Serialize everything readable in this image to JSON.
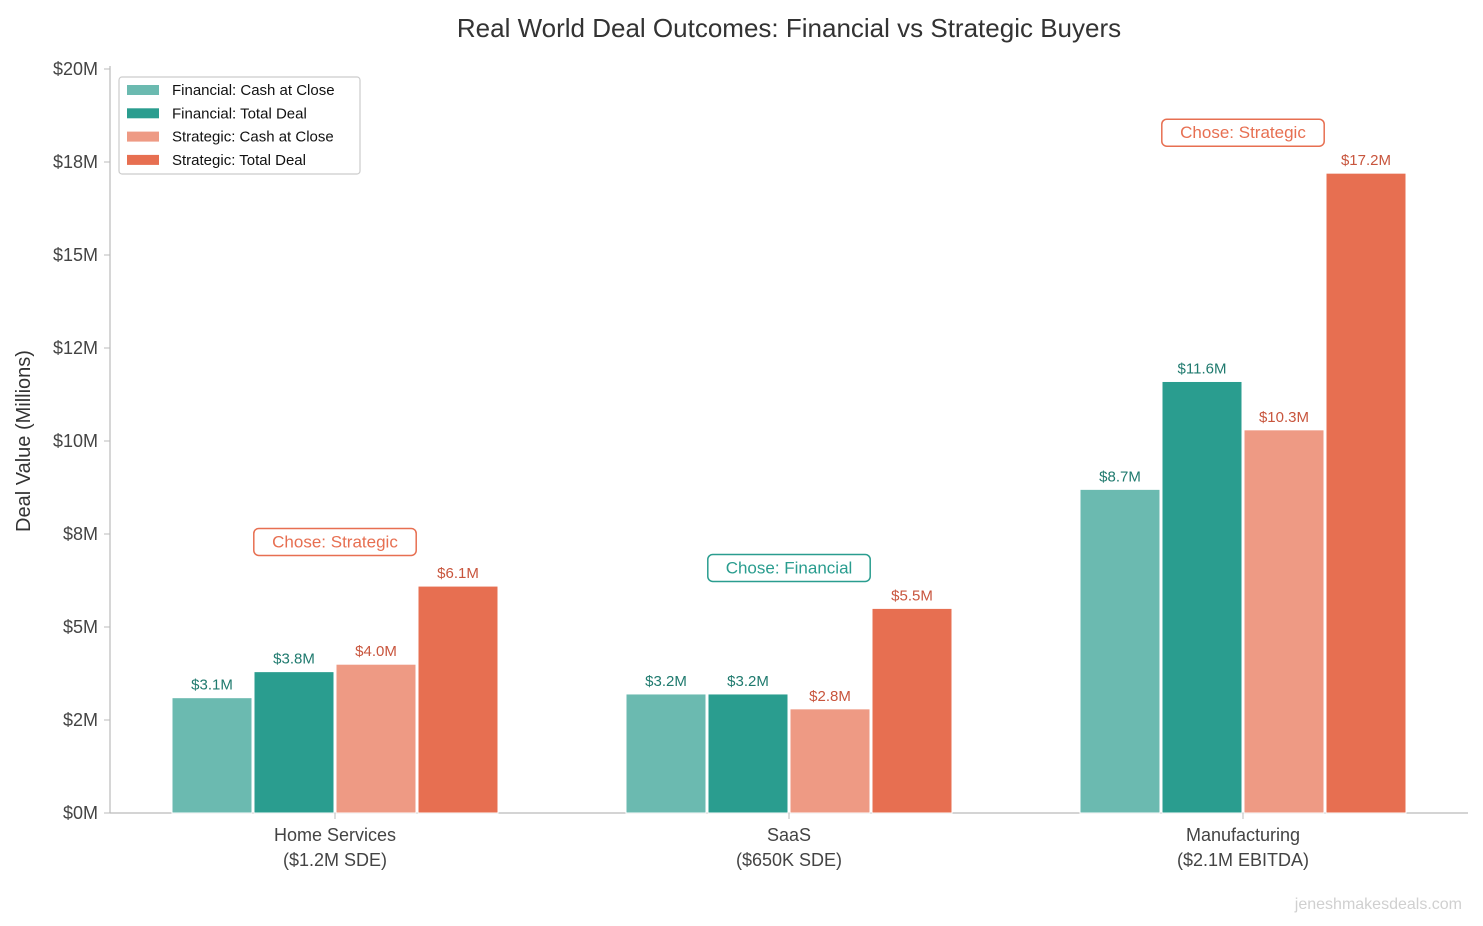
{
  "chart_data": {
    "type": "bar",
    "title": "Real World Deal Outcomes: Financial vs Strategic Buyers",
    "xlabel": "",
    "ylabel": "Deal Value (Millions)",
    "ylim": [
      0,
      20
    ],
    "yticks": [
      0,
      2.5,
      5,
      7.5,
      10,
      12.5,
      15,
      17.5,
      20
    ],
    "ytick_labels": [
      "$0M",
      "$2M",
      "$5M",
      "$8M",
      "$10M",
      "$12M",
      "$15M",
      "$18M",
      "$20M"
    ],
    "grid": false,
    "legend_position": "top-left",
    "categories": [
      "Home Services\n($1.2M SDE)",
      "SaaS\n($650K SDE)",
      "Manufacturing\n($2.1M EBITDA)"
    ],
    "category_lines": [
      [
        "Home Services",
        "($1.2M SDE)"
      ],
      [
        "SaaS",
        "($650K SDE)"
      ],
      [
        "Manufacturing",
        "($2.1M EBITDA)"
      ]
    ],
    "series": [
      {
        "name": "Financial: Cash at Close",
        "color": "#6bbab0",
        "label_color": "#1f7a6e",
        "values": [
          3.1,
          3.2,
          8.7
        ],
        "labels": [
          "$3.1M",
          "$3.2M",
          "$8.7M"
        ]
      },
      {
        "name": "Financial: Total Deal",
        "color": "#2a9d8f",
        "label_color": "#1f7a6e",
        "values": [
          3.8,
          3.2,
          11.6
        ],
        "labels": [
          "$3.8M",
          "$3.2M",
          "$11.6M"
        ]
      },
      {
        "name": "Strategic: Cash at Close",
        "color": "#ee9a84",
        "label_color": "#c8553d",
        "values": [
          4.0,
          2.8,
          10.3
        ],
        "labels": [
          "$4.0M",
          "$2.8M",
          "$10.3M"
        ]
      },
      {
        "name": "Strategic: Total Deal",
        "color": "#e76f51",
        "label_color": "#c8553d",
        "values": [
          6.1,
          5.5,
          17.2
        ],
        "labels": [
          "$6.1M",
          "$5.5M",
          "$17.2M"
        ]
      }
    ],
    "annotations": [
      {
        "text": "Chose: Strategic",
        "color": "#e76f51"
      },
      {
        "text": "Chose: Financial",
        "color": "#2a9d8f"
      },
      {
        "text": "Chose: Strategic",
        "color": "#e76f51"
      }
    ]
  },
  "watermark": "jeneshmakesdeals.com"
}
